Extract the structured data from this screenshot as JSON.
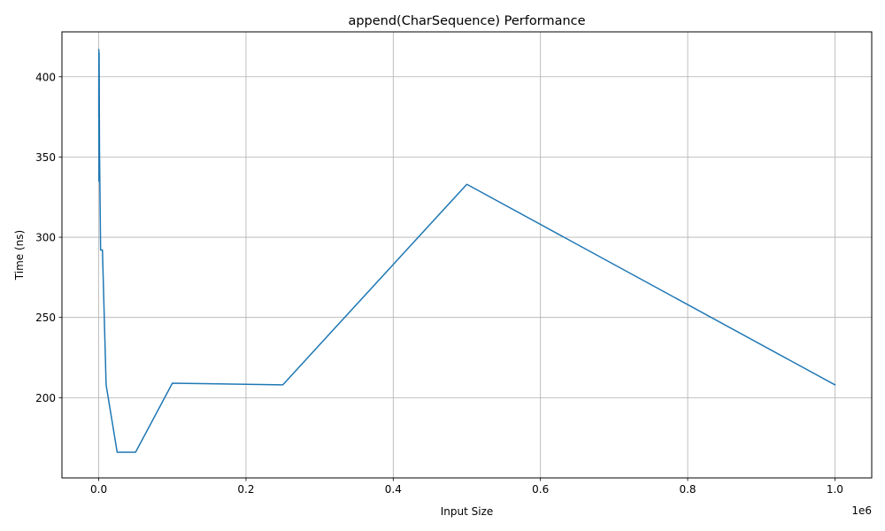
{
  "chart_data": {
    "type": "line",
    "title": "append(CharSequence) Performance",
    "xlabel": "Input Size",
    "ylabel": "Time (ns)",
    "x_offset_label": "1e6",
    "xlim": [
      -50000,
      1050000
    ],
    "ylim": [
      150,
      428
    ],
    "x_ticks": [
      0,
      200000,
      400000,
      600000,
      800000,
      1000000
    ],
    "x_tick_labels": [
      "0.0",
      "0.2",
      "0.4",
      "0.6",
      "0.8",
      "1.0"
    ],
    "y_ticks": [
      200,
      250,
      300,
      350,
      400
    ],
    "y_tick_labels": [
      "200",
      "250",
      "300",
      "350",
      "400"
    ],
    "grid": true,
    "legend": "none",
    "series": [
      {
        "color": "#1f77b4",
        "x": [
          10,
          100,
          250,
          500,
          1000,
          2500,
          5000,
          10000,
          25000,
          50000,
          100000,
          250000,
          500000,
          1000000
        ],
        "y": [
          375,
          417,
          335,
          415,
          355,
          292,
          292,
          208,
          166,
          166,
          209,
          208,
          333,
          208
        ]
      }
    ]
  }
}
